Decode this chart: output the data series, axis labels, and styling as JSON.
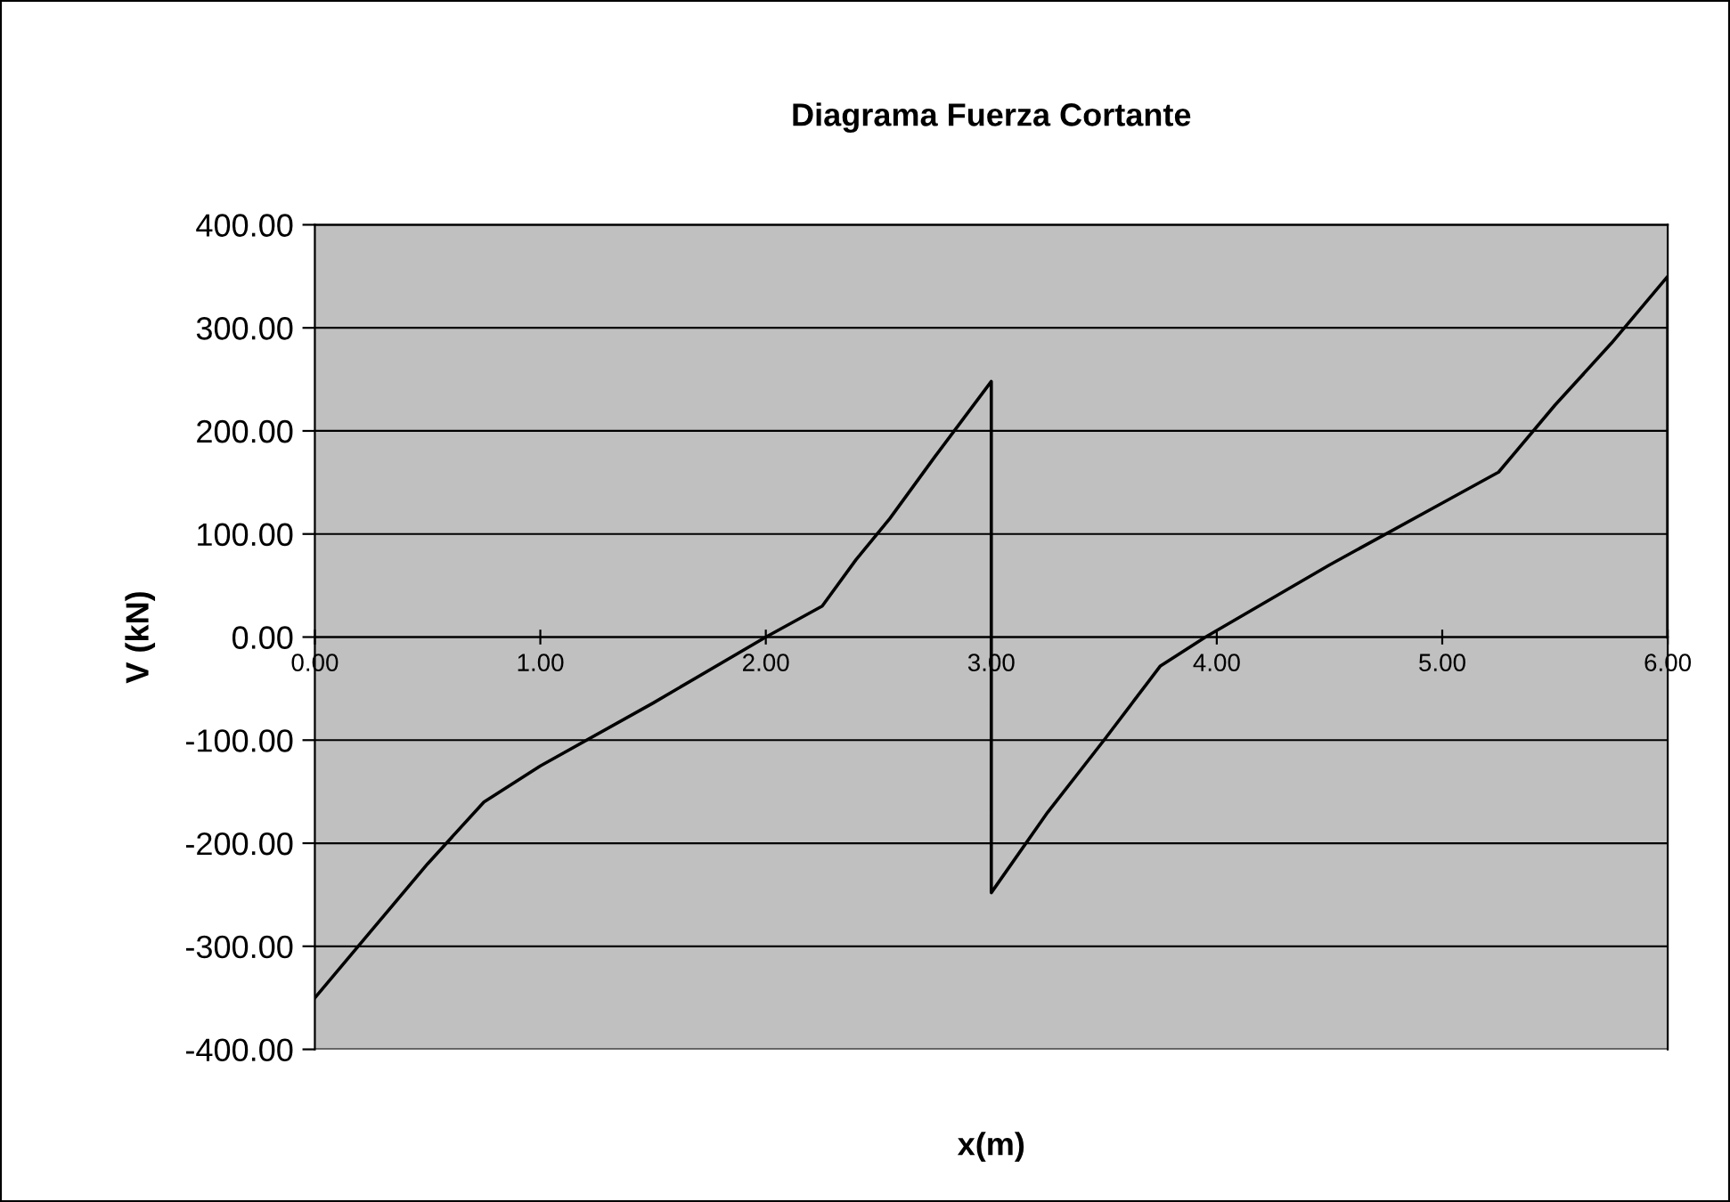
{
  "chart_data": {
    "type": "line",
    "title": "Diagrama Fuerza Cortante",
    "xlabel": "x(m)",
    "ylabel": "V (kN)",
    "series": [
      {
        "color": "#000000",
        "x": [
          0,
          0.25,
          0.5,
          0.75,
          1.0,
          1.5,
          2.0,
          2.25,
          2.4,
          2.55,
          2.75,
          3.0,
          3.0,
          3.25,
          3.5,
          3.75,
          3.95,
          4.5,
          5.0,
          5.25,
          5.5,
          5.75,
          6.0,
          6.0
        ],
        "values": [
          -350,
          -285,
          -220,
          -160,
          -125,
          -64,
          0,
          30,
          75,
          115,
          175,
          248,
          -248,
          -170,
          -100,
          -28,
          0,
          70,
          130,
          160,
          225,
          285,
          350,
          0
        ]
      }
    ],
    "xlim": [
      0,
      6
    ],
    "ylim": [
      -400,
      400
    ],
    "xticks": [
      {
        "value": 0,
        "label": "0.00"
      },
      {
        "value": 1,
        "label": "1.00"
      },
      {
        "value": 2,
        "label": "2.00"
      },
      {
        "value": 3,
        "label": "3.00"
      },
      {
        "value": 4,
        "label": "4.00"
      },
      {
        "value": 5,
        "label": "5.00"
      },
      {
        "value": 6,
        "label": "6.00"
      }
    ],
    "yticks": [
      {
        "value": -400,
        "label": "-400.00"
      },
      {
        "value": -300,
        "label": "-300.00"
      },
      {
        "value": -200,
        "label": "-200.00"
      },
      {
        "value": -100,
        "label": "-100.00"
      },
      {
        "value": 0,
        "label": "0.00"
      },
      {
        "value": 100,
        "label": "100.00"
      },
      {
        "value": 200,
        "label": "200.00"
      },
      {
        "value": 300,
        "label": "300.00"
      },
      {
        "value": 400,
        "label": "400.00"
      }
    ],
    "grid": "y",
    "legend": false,
    "marker": "none",
    "line_style": "solid"
  }
}
